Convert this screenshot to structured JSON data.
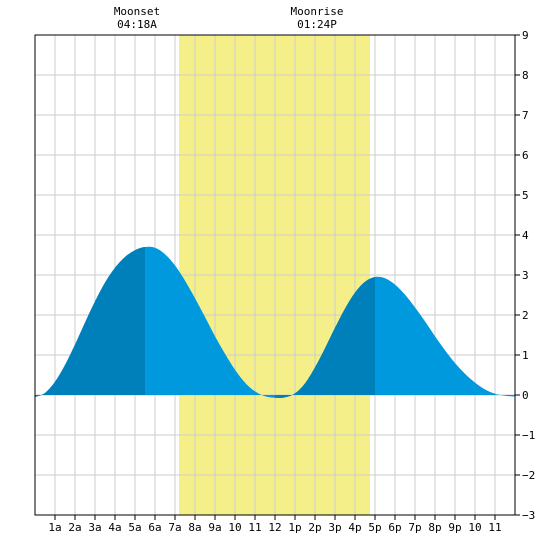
{
  "chart_data": {
    "type": "area",
    "title": "",
    "xlabel": "",
    "ylabel": "",
    "x_unit": "hour of day",
    "xlim": [
      0,
      24
    ],
    "ylim": [
      -3,
      9
    ],
    "grid": true,
    "x_ticks": [
      {
        "x": 1,
        "label": "1a"
      },
      {
        "x": 2,
        "label": "2a"
      },
      {
        "x": 3,
        "label": "3a"
      },
      {
        "x": 4,
        "label": "4a"
      },
      {
        "x": 5,
        "label": "5a"
      },
      {
        "x": 6,
        "label": "6a"
      },
      {
        "x": 7,
        "label": "7a"
      },
      {
        "x": 8,
        "label": "8a"
      },
      {
        "x": 9,
        "label": "9a"
      },
      {
        "x": 10,
        "label": "10"
      },
      {
        "x": 11,
        "label": "11"
      },
      {
        "x": 12,
        "label": "12"
      },
      {
        "x": 13,
        "label": "1p"
      },
      {
        "x": 14,
        "label": "2p"
      },
      {
        "x": 15,
        "label": "3p"
      },
      {
        "x": 16,
        "label": "4p"
      },
      {
        "x": 17,
        "label": "5p"
      },
      {
        "x": 18,
        "label": "6p"
      },
      {
        "x": 19,
        "label": "7p"
      },
      {
        "x": 20,
        "label": "8p"
      },
      {
        "x": 21,
        "label": "9p"
      },
      {
        "x": 22,
        "label": "10"
      },
      {
        "x": 23,
        "label": "11"
      }
    ],
    "y_ticks": [
      -3,
      -2,
      -1,
      0,
      1,
      2,
      3,
      4,
      5,
      6,
      7,
      8,
      9
    ],
    "daylight": {
      "start": 7.2,
      "end": 16.75
    },
    "annotations": [
      {
        "title": "Moonset",
        "time": "04:18A",
        "x": 5.1
      },
      {
        "title": "Moonrise",
        "time": "01:24P",
        "x": 14.1
      }
    ],
    "series": [
      {
        "x": [
          0,
          0.5,
          1,
          1.5,
          2,
          2.5,
          3,
          3.5,
          4,
          4.5,
          5,
          5.5,
          6,
          6.5,
          7,
          7.5,
          8,
          8.5,
          9,
          9.5,
          10,
          10.5,
          11,
          11.5,
          12,
          12.5,
          13,
          13.5,
          14,
          14.5,
          15,
          15.5,
          16,
          16.5,
          17,
          17.5,
          18,
          18.5,
          19,
          19.5,
          20,
          20.5,
          21,
          21.5,
          22,
          22.5,
          23,
          23.5,
          24
        ],
        "values": [
          -0.05,
          0.05,
          0.33,
          0.75,
          1.26,
          1.81,
          2.34,
          2.81,
          3.18,
          3.45,
          3.62,
          3.7,
          3.68,
          3.52,
          3.24,
          2.86,
          2.42,
          1.95,
          1.47,
          1.03,
          0.63,
          0.31,
          0.09,
          -0.03,
          -0.07,
          -0.06,
          0.04,
          0.29,
          0.69,
          1.17,
          1.68,
          2.16,
          2.56,
          2.83,
          2.95,
          2.92,
          2.76,
          2.51,
          2.19,
          1.84,
          1.47,
          1.12,
          0.8,
          0.53,
          0.31,
          0.14,
          0.03,
          -0.02,
          -0.04
        ]
      }
    ],
    "colors": {
      "daylight": "#f5ef8a",
      "tide_light": "#0099dd",
      "tide_dark": "#0080bb",
      "grid": "#cccccc",
      "axis": "#000000"
    }
  }
}
